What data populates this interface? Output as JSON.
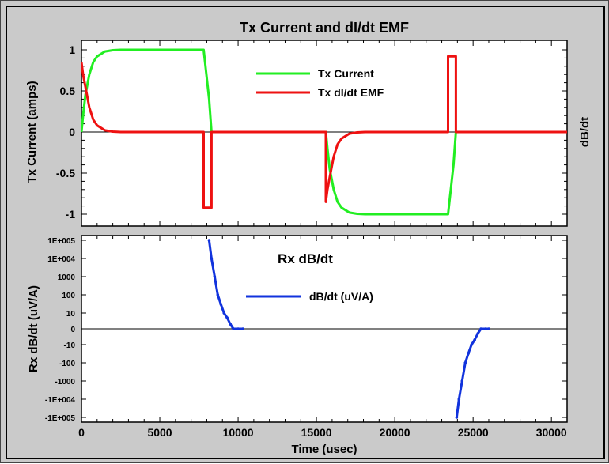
{
  "chart_data": [
    {
      "type": "line",
      "title": "Tx Current and dI/dt EMF",
      "xlabel": "",
      "ylabel": "Tx Current (amps)",
      "right_label": "dB/dt",
      "xlim": [
        0,
        31000
      ],
      "ylim": [
        -1.1,
        1.1
      ],
      "yticks": [
        "1",
        "0.5",
        "0",
        "-0.5",
        "-1"
      ],
      "ytick_values": [
        1,
        0.5,
        0,
        -0.5,
        -1
      ],
      "legend_position": "top-center",
      "series": [
        {
          "name": "Tx Current",
          "color": "#22ee22",
          "x": [
            0,
            100,
            250,
            500,
            750,
            1000,
            1500,
            2000,
            2500,
            3000,
            4000,
            5000,
            6000,
            7000,
            7800,
            8150,
            8300,
            15600,
            15700,
            15850,
            16100,
            16350,
            16600,
            17100,
            17600,
            18100,
            18600,
            19600,
            20600,
            21600,
            22600,
            23400,
            23750,
            23900,
            31000
          ],
          "y": [
            0,
            0.2,
            0.45,
            0.7,
            0.85,
            0.92,
            0.98,
            0.995,
            1,
            1,
            1,
            1,
            1,
            1,
            1,
            0.4,
            0,
            0,
            -0.2,
            -0.45,
            -0.7,
            -0.85,
            -0.92,
            -0.98,
            -0.995,
            -1,
            -1,
            -1,
            -1,
            -1,
            -1,
            -1,
            -0.4,
            0,
            0
          ]
        },
        {
          "name": "Tx dI/dt EMF",
          "color": "#ee1111",
          "x": [
            0,
            100,
            250,
            500,
            750,
            1000,
            1500,
            2000,
            2500,
            3000,
            4000,
            5000,
            6000,
            7000,
            7800,
            7800,
            8300,
            8300,
            15600,
            15600,
            15700,
            15850,
            16100,
            16350,
            16600,
            17100,
            17600,
            18100,
            18600,
            19600,
            20600,
            21600,
            22600,
            23400,
            23400,
            23900,
            23900,
            31000
          ],
          "y": [
            0.85,
            0.7,
            0.55,
            0.3,
            0.15,
            0.08,
            0.02,
            0.005,
            0,
            0,
            0,
            0,
            0,
            0,
            0,
            -0.92,
            -0.92,
            0,
            0,
            -0.85,
            -0.7,
            -0.55,
            -0.3,
            -0.15,
            -0.08,
            -0.02,
            -0.005,
            0,
            0,
            0,
            0,
            0,
            0,
            0,
            0.92,
            0.92,
            0,
            0
          ]
        }
      ]
    },
    {
      "type": "line",
      "title": "Rx dB/dt",
      "xlabel": "Time (usec)",
      "ylabel": "Rx dB/dt (uV/A)",
      "xlim": [
        0,
        31000
      ],
      "xticks": [
        "0",
        "5000",
        "10000",
        "15000",
        "20000",
        "25000",
        "30000"
      ],
      "xtick_values": [
        0,
        5000,
        10000,
        15000,
        20000,
        25000,
        30000
      ],
      "yscale": "symlog",
      "yticks": [
        "1E+005",
        "1E+004",
        "1000",
        "100",
        "10",
        "0",
        "-10",
        "-100",
        "-1000",
        "-1E+004",
        "-1E+005"
      ],
      "ytick_values": [
        100000,
        10000,
        1000,
        100,
        10,
        0,
        -10,
        -100,
        -1000,
        -10000,
        -100000
      ],
      "legend_position": "top-center",
      "series": [
        {
          "name": "dB/dt (uV/A)",
          "color": "#1133dd",
          "x": [
            8150,
            8300,
            8500,
            8700,
            8900,
            9100,
            9300,
            9500,
            9700,
            10000,
            10300
          ],
          "y": [
            100000,
            10000,
            1000,
            100,
            30,
            10,
            5,
            2,
            1,
            0.3,
            0
          ]
        },
        {
          "name": "",
          "color": "#1133dd",
          "x": [
            23950,
            24100,
            24300,
            24500,
            24700,
            24900,
            25100,
            25300,
            25500,
            25800,
            26000
          ],
          "y": [
            -100000,
            -10000,
            -1000,
            -100,
            -30,
            -10,
            -5,
            -2,
            -1,
            -0.3,
            0
          ]
        }
      ]
    }
  ]
}
